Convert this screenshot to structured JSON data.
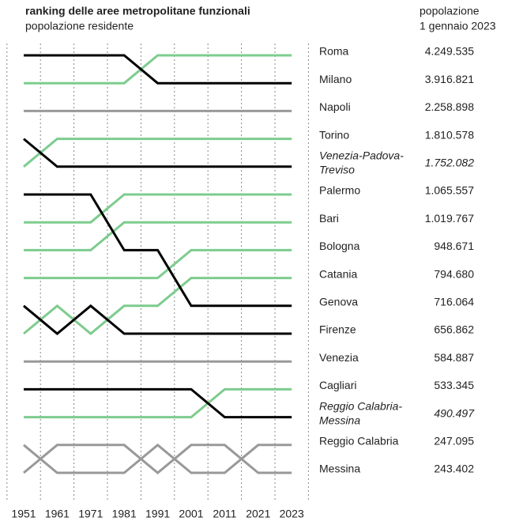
{
  "chart_data": {
    "type": "bump",
    "title": "ranking delle aree metropolitane funzionali",
    "subtitle": "popolazione residente",
    "value_header": [
      "popolazione",
      "1 gennaio 2023"
    ],
    "categories": [
      "1951",
      "1961",
      "1971",
      "1981",
      "1991",
      "2001",
      "2011",
      "2021",
      "2023"
    ],
    "ylim": [
      1,
      16
    ],
    "series": [
      {
        "name": [
          "Roma"
        ],
        "population": "4.249.535",
        "color": "#7dcc8e",
        "values": [
          2,
          2,
          2,
          2,
          1,
          1,
          1,
          1,
          1
        ]
      },
      {
        "name": [
          "Milano"
        ],
        "population": "3.916.821",
        "color": "#000000",
        "values": [
          1,
          1,
          1,
          1,
          2,
          2,
          2,
          2,
          2
        ]
      },
      {
        "name": [
          "Napoli"
        ],
        "population": "2.258.898",
        "color": "#999999",
        "values": [
          3,
          3,
          3,
          3,
          3,
          3,
          3,
          3,
          3
        ]
      },
      {
        "name": [
          "Torino"
        ],
        "population": "1.810.578",
        "color": "#7dcc8e",
        "values": [
          5,
          4,
          4,
          4,
          4,
          4,
          4,
          4,
          4
        ]
      },
      {
        "name": [
          "Venezia-Padova-",
          "Treviso"
        ],
        "population": "1.752.082",
        "italic": true,
        "color": "#000000",
        "values": [
          4,
          5,
          5,
          5,
          5,
          5,
          5,
          5,
          5
        ]
      },
      {
        "name": [
          "Palermo"
        ],
        "population": "1.065.557",
        "color": "#7dcc8e",
        "values": [
          7,
          7,
          7,
          6,
          6,
          6,
          6,
          6,
          6
        ]
      },
      {
        "name": [
          "Bari"
        ],
        "population": "1.019.767",
        "color": "#7dcc8e",
        "values": [
          8,
          8,
          8,
          7,
          7,
          7,
          7,
          7,
          7
        ]
      },
      {
        "name": [
          "Bologna"
        ],
        "population": "948.671",
        "color": "#7dcc8e",
        "values": [
          9,
          9,
          9,
          9,
          9,
          8,
          8,
          8,
          8
        ]
      },
      {
        "name": [
          "Catania"
        ],
        "population": "794.680",
        "color": "#7dcc8e",
        "values": [
          11,
          10,
          11,
          10,
          10,
          9,
          9,
          9,
          9
        ]
      },
      {
        "name": [
          "Genova"
        ],
        "population": "716.064",
        "color": "#000000",
        "values": [
          6,
          6,
          6,
          8,
          8,
          10,
          10,
          10,
          10
        ]
      },
      {
        "name": [
          "Firenze"
        ],
        "population": "656.862",
        "color": "#000000",
        "values": [
          10,
          11,
          10,
          11,
          11,
          11,
          11,
          11,
          11
        ]
      },
      {
        "name": [
          "Venezia"
        ],
        "population": "584.887",
        "color": "#999999",
        "values": [
          12,
          12,
          12,
          12,
          12,
          12,
          12,
          12,
          12
        ]
      },
      {
        "name": [
          "Cagliari"
        ],
        "population": "533.345",
        "color": "#7dcc8e",
        "values": [
          14,
          14,
          14,
          14,
          14,
          14,
          13,
          13,
          13
        ]
      },
      {
        "name": [
          "Reggio Calabria-",
          "Messina"
        ],
        "population": "490.497",
        "italic": true,
        "color": "#000000",
        "values": [
          13,
          13,
          13,
          13,
          13,
          13,
          14,
          14,
          14
        ]
      },
      {
        "name": [
          "Reggio Calabria"
        ],
        "population": "247.095",
        "color": "#999999",
        "values": [
          15,
          16,
          16,
          16,
          15,
          16,
          16,
          15,
          15
        ]
      },
      {
        "name": [
          "Messina"
        ],
        "population": "243.402",
        "color": "#999999",
        "values": [
          16,
          15,
          15,
          15,
          16,
          15,
          15,
          16,
          16
        ]
      }
    ]
  }
}
